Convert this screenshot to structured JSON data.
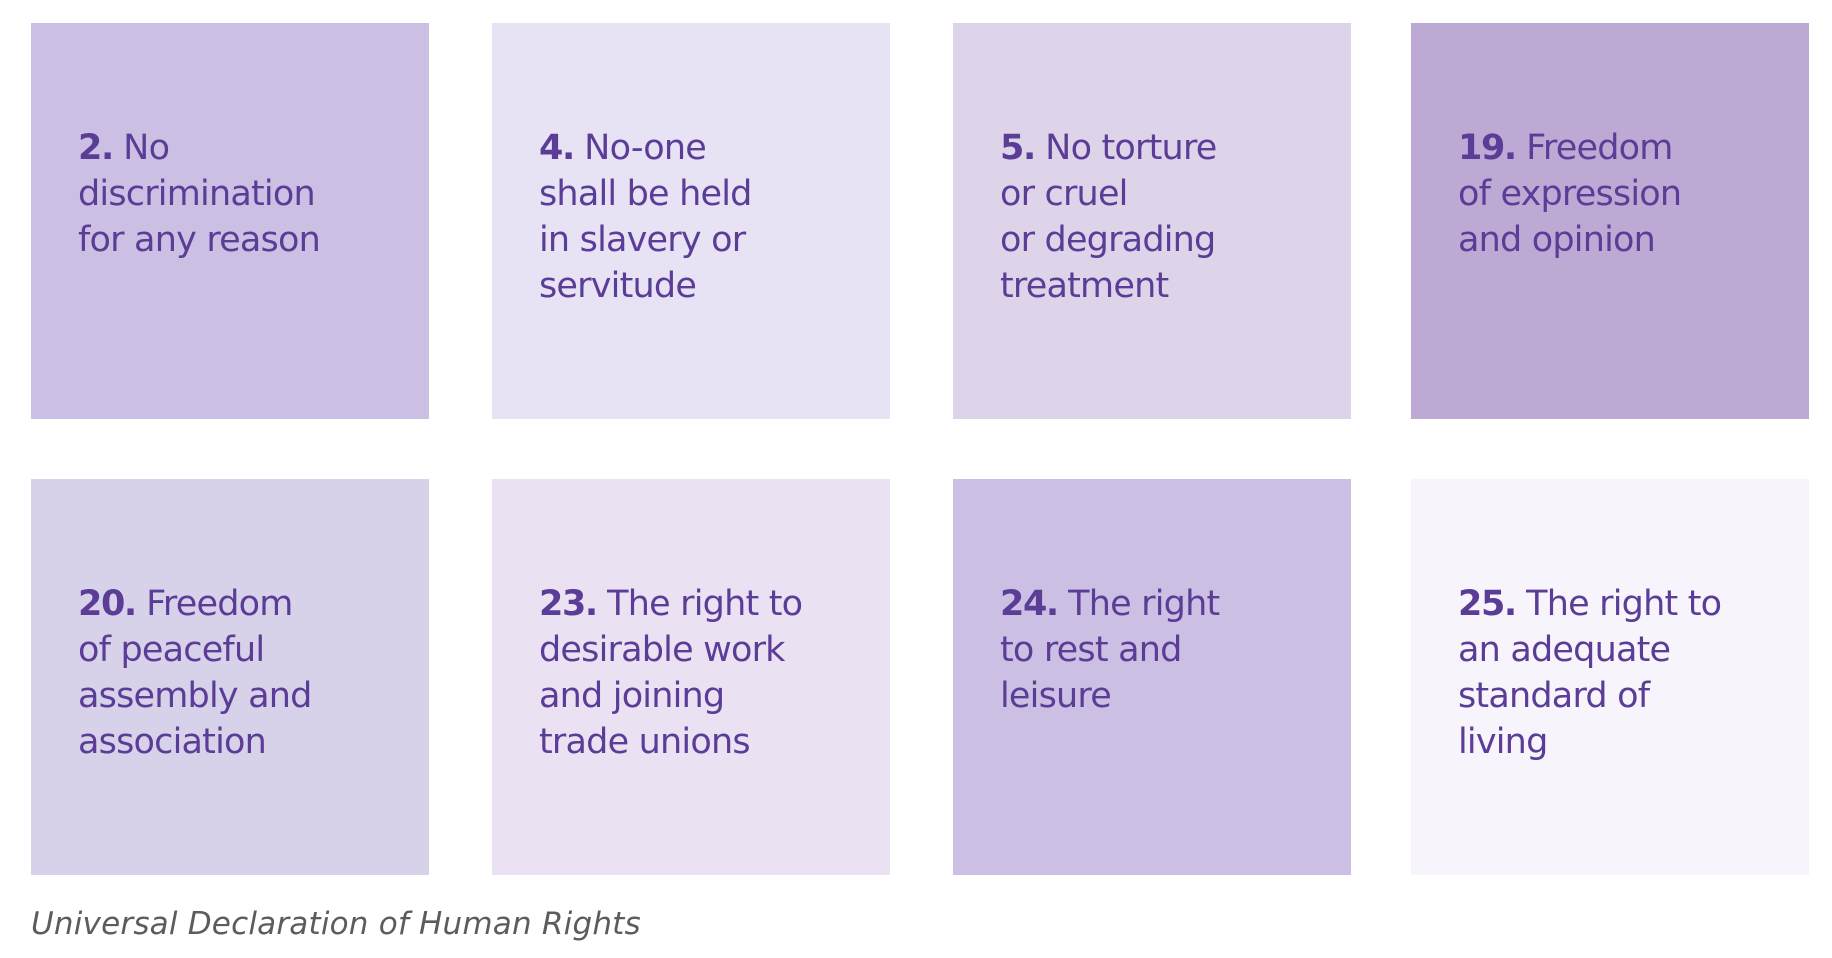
{
  "cards": [
    {
      "number": "2.",
      "text": " No\ndiscrimination\nfor any reason",
      "color": "#cbc0e3"
    },
    {
      "number": "4.",
      "text": " No-one\nshall be held\nin slavery or\nservitude",
      "color": "#e7e2f4"
    },
    {
      "number": "5.",
      "text": " No torture\nor cruel\nor degrading\ntreatment",
      "color": "#ddd4ea"
    },
    {
      "number": "19.",
      "text": " Freedom\nof expression\nand opinion",
      "color": "#bcaad5"
    },
    {
      "number": "20.",
      "text": " Freedom\nof peaceful\nassembly and\nassociation",
      "color": "#d8d1ea"
    },
    {
      "number": "23.",
      "text": " The right to\ndesirable work\nand joining\ntrade unions",
      "color": "#eae2f3"
    },
    {
      "number": "24.",
      "text": " The right\nto rest and\nleisure",
      "color": "#cbc0e3"
    },
    {
      "number": "25.",
      "text": " The right to\nan adequate\nstandard of\nliving",
      "color": "#f7f5fb"
    }
  ],
  "caption": "Universal Declaration of Human Rights",
  "colors": {
    "text": "#5b3c96",
    "caption": "#5c5c5c",
    "background": "#ffffff"
  }
}
